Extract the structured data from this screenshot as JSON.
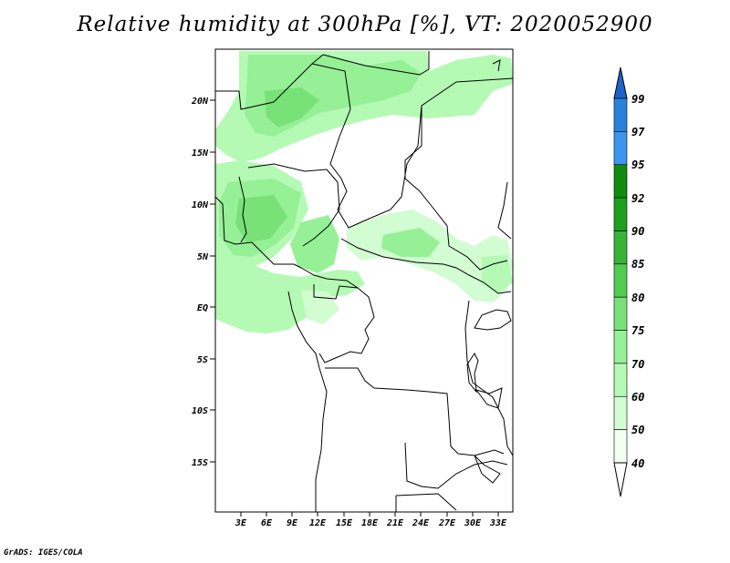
{
  "title": "Relative humidity at 300hPa [%], VT: 2020052900",
  "credit": "GrADS: IGES/COLA",
  "map": {
    "lat_ticks": [
      "20N",
      "15N",
      "10N",
      "5N",
      "EQ",
      "5S",
      "10S",
      "15S"
    ],
    "lon_ticks": [
      "3E",
      "6E",
      "9E",
      "12E",
      "15E",
      "18E",
      "21E",
      "24E",
      "27E",
      "30E",
      "33E"
    ]
  },
  "colorbar": {
    "levels": [
      "99",
      "97",
      "95",
      "92",
      "90",
      "85",
      "80",
      "75",
      "70",
      "60",
      "50",
      "40"
    ],
    "colors": [
      "#1e64c8",
      "#2882dc",
      "#3c96f0",
      "#0f8c0f",
      "#1ea01e",
      "#37b437",
      "#50cd50",
      "#78e178",
      "#96f096",
      "#b4fab4",
      "#d2fcd2",
      "#f0fff0"
    ]
  }
}
